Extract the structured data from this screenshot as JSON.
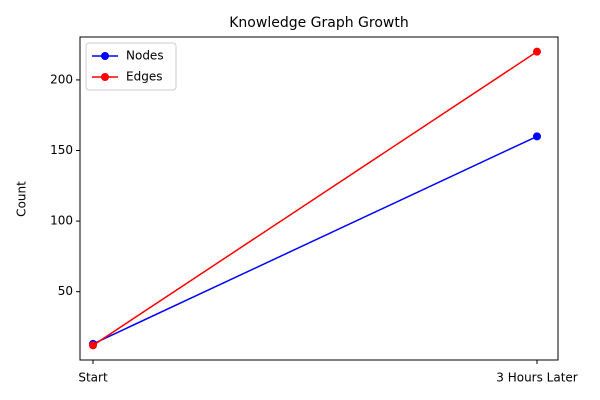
{
  "chart_data": {
    "type": "line",
    "title": "Knowledge Graph Growth",
    "y_label": "Count",
    "categories": [
      "Start",
      "3 Hours Later"
    ],
    "series": [
      {
        "name": "Nodes",
        "color": "#0000ff",
        "values": [
          13,
          160
        ]
      },
      {
        "name": "Edges",
        "color": "#ff0000",
        "values": [
          12,
          220
        ]
      }
    ],
    "ylim": [
      1.6,
      230.4
    ],
    "yticks": [
      50,
      100,
      150,
      200
    ],
    "legend": "upper left"
  }
}
